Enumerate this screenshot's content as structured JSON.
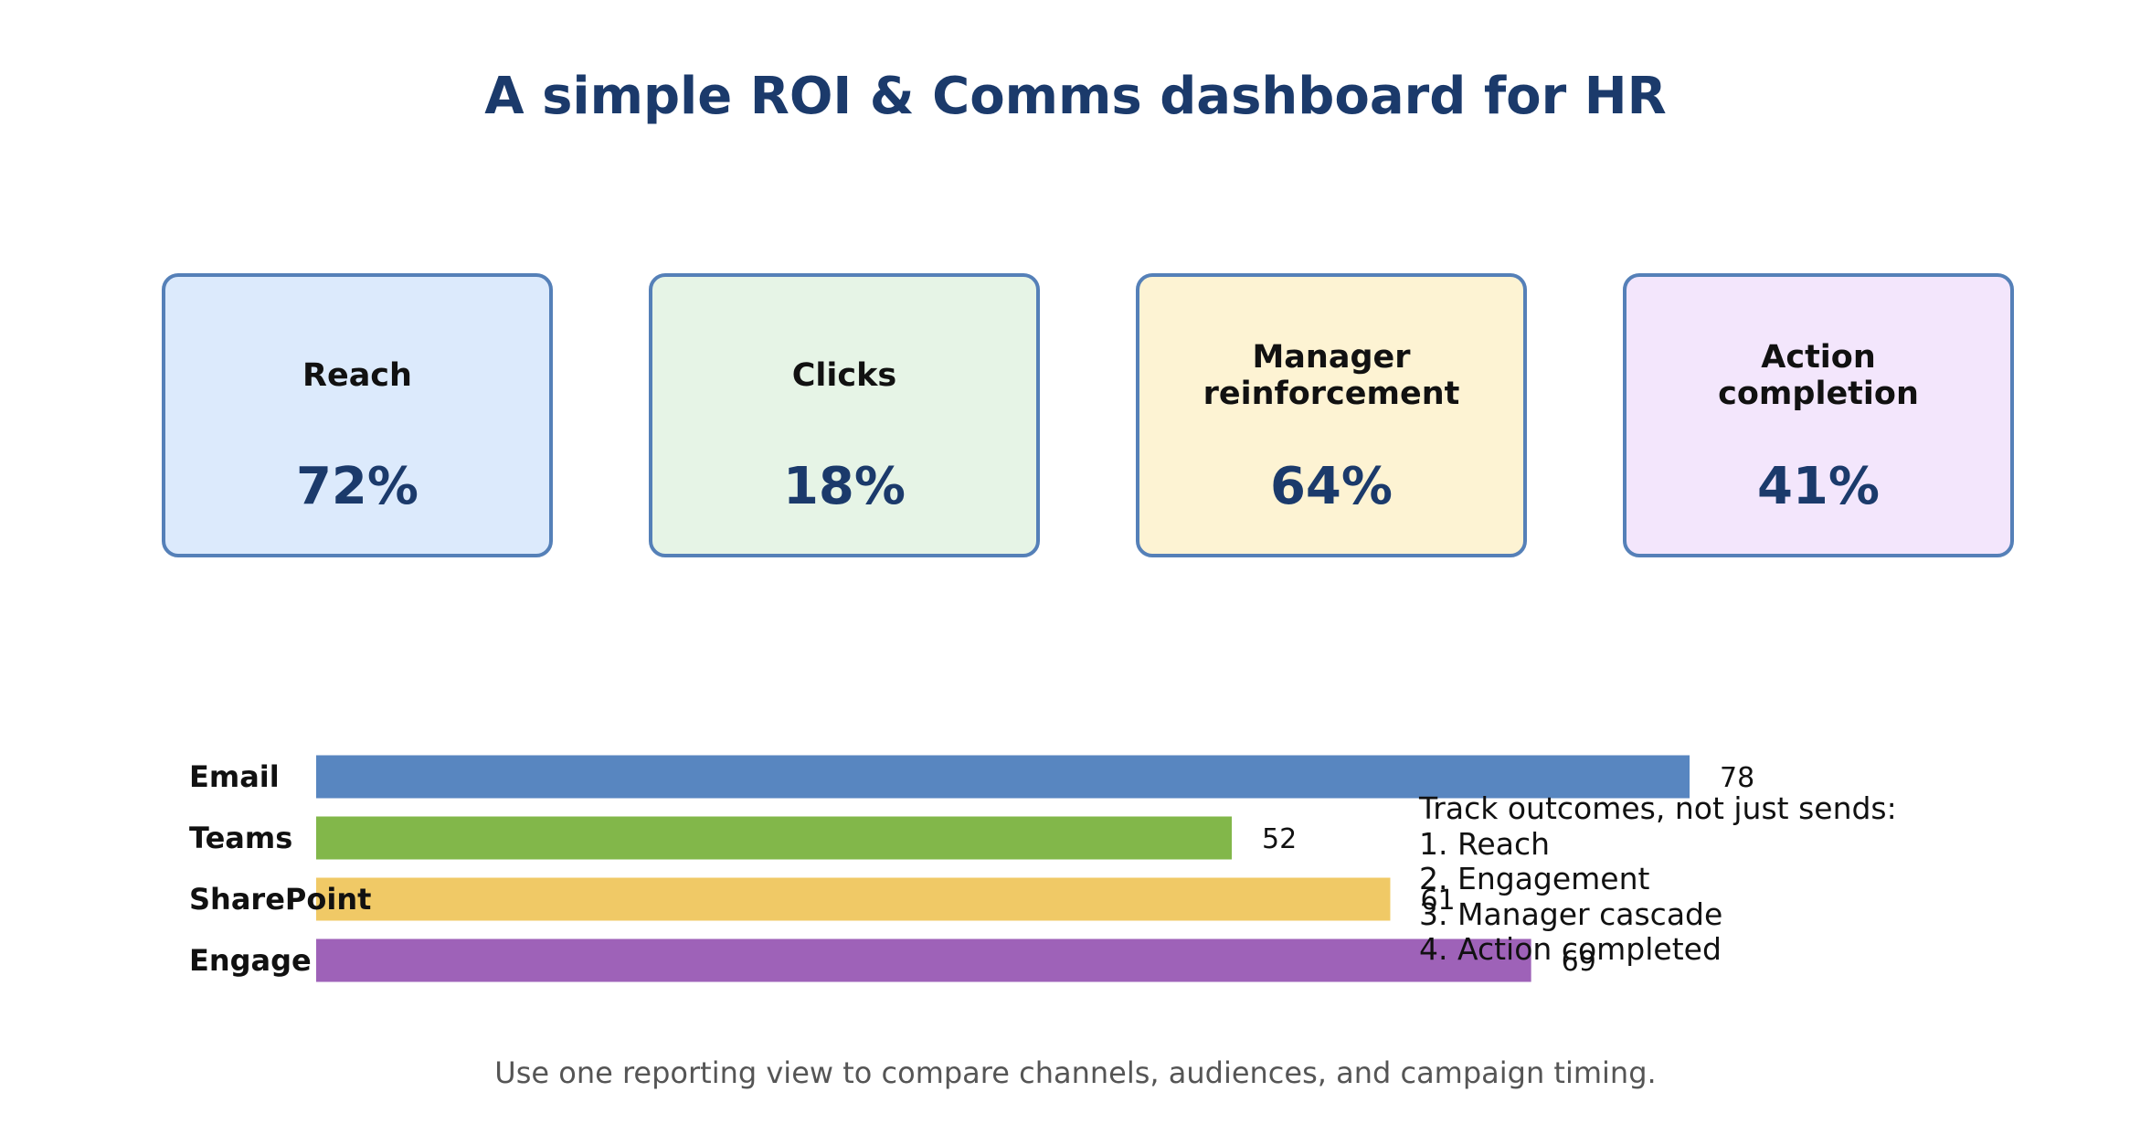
{
  "title": "A simple ROI & Comms dashboard for HR",
  "kpis": [
    {
      "label": "Reach",
      "value": "72%",
      "bg": "#dceafc"
    },
    {
      "label": "Clicks",
      "value": "18%",
      "bg": "#e6f4e6"
    },
    {
      "label": "Manager\nreinforcement",
      "value": "64%",
      "bg": "#fdf3d3"
    },
    {
      "label": "Action\ncompletion",
      "value": "41%",
      "bg": "#f3e6fc"
    }
  ],
  "chart_data": {
    "type": "bar",
    "orientation": "horizontal",
    "categories": [
      "Email",
      "Teams",
      "SharePoint",
      "Engage"
    ],
    "values": [
      78,
      52,
      61,
      69
    ],
    "colors": [
      "#5886c0",
      "#82b74a",
      "#f0c966",
      "#9e62b8"
    ],
    "data_labels": true,
    "grid": false,
    "title": "",
    "xlabel": "",
    "ylabel": ""
  },
  "steps": {
    "heading": "Track outcomes, not just sends:",
    "items": [
      "1. Reach",
      "2. Engagement",
      "3. Manager cascade",
      "4. Action completed"
    ]
  },
  "footnote": "Use one reporting view to compare channels, audiences, and campaign timing."
}
